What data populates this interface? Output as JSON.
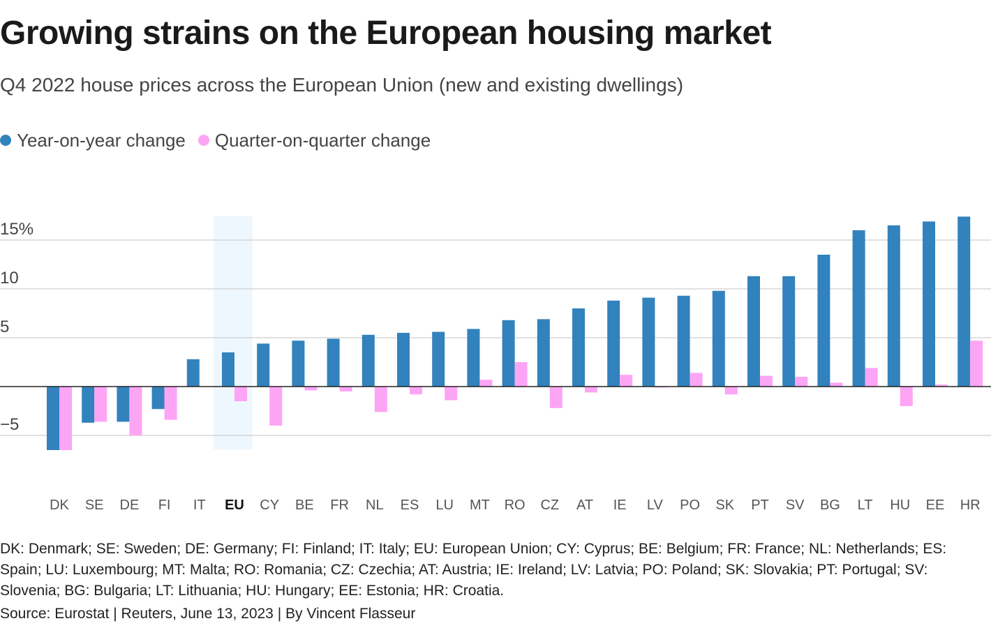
{
  "title": "Growing strains on the European housing market",
  "subtitle": "Q4 2022 house prices across the European Union (new and existing dwellings)",
  "legend": {
    "yoy": "Year-on-year change",
    "qoq": "Quarter-on-quarter change"
  },
  "colors": {
    "yoy": "#3282bd",
    "qoq": "#fda5f5",
    "highlight": "#eef7fd",
    "grid": "#cfcfcf",
    "zero": "#222222"
  },
  "footnote": "DK: Denmark; SE: Sweden; DE: Germany; FI: Finland; IT: Italy; EU: European Union; CY: Cyprus; BE: Belgium; FR: France; NL: Netherlands; ES: Spain; LU: Luxembourg; MT: Malta; RO: Romania; CZ: Czechia; AT: Austria; IE: Ireland; LV: Latvia; PO: Poland; SK: Slovakia; PT: Portugal; SV: Slovenia; BG: Bulgaria; LT: Lithuania; HU: Hungary; EE: Estonia; HR: Croatia.",
  "source": "Source: Eurostat | Reuters, June 13, 2023 | By Vincent Flasseur",
  "chart_data": {
    "type": "bar",
    "categories": [
      "DK",
      "SE",
      "DE",
      "FI",
      "IT",
      "EU",
      "CY",
      "BE",
      "FR",
      "NL",
      "ES",
      "LU",
      "MT",
      "RO",
      "CZ",
      "AT",
      "IE",
      "LV",
      "PO",
      "SK",
      "PT",
      "SV",
      "BG",
      "LT",
      "HU",
      "EE",
      "HR"
    ],
    "highlight_category": "EU",
    "series": [
      {
        "name": "Year-on-year change",
        "values": [
          -6.5,
          -3.7,
          -3.6,
          -2.3,
          2.8,
          3.5,
          4.4,
          4.7,
          4.9,
          5.3,
          5.5,
          5.6,
          5.9,
          6.8,
          6.9,
          8.0,
          8.8,
          9.1,
          9.3,
          9.8,
          11.3,
          11.3,
          13.5,
          16.0,
          16.5,
          16.9,
          17.4
        ]
      },
      {
        "name": "Quarter-on-quarter change",
        "values": [
          -6.5,
          -3.6,
          -5.0,
          -3.4,
          0.0,
          -1.5,
          -4.0,
          -0.4,
          -0.5,
          -2.6,
          -0.8,
          -1.4,
          0.7,
          2.5,
          -2.2,
          -0.6,
          1.2,
          -0.1,
          1.4,
          -0.8,
          1.1,
          1.0,
          0.4,
          1.9,
          -2.0,
          0.2,
          4.7
        ]
      }
    ],
    "yticks": [
      15,
      10,
      5,
      0,
      -5
    ],
    "ytick_labels": [
      "15%",
      "10",
      "5",
      "",
      "−5"
    ],
    "ylim": [
      -6.5,
      17.5
    ],
    "grid": true,
    "legend_position": "top-left"
  }
}
